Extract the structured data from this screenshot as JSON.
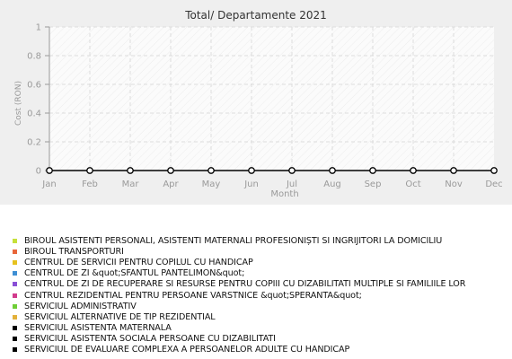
{
  "chart_data": {
    "type": "line",
    "title": "Total/ Departamente 2021",
    "xlabel": "Month",
    "ylabel": "Cost (RON)",
    "categories": [
      "Jan",
      "Feb",
      "Mar",
      "Apr",
      "May",
      "Jun",
      "Jul",
      "Aug",
      "Sep",
      "Oct",
      "Nov",
      "Dec"
    ],
    "y_ticks": [
      "0",
      "0.2",
      "0.4",
      "0.6",
      "0.8",
      "1"
    ],
    "ylim": [
      0,
      1
    ],
    "grid": true,
    "values": [
      0,
      0,
      0,
      0,
      0,
      0,
      0,
      0,
      0,
      0,
      0,
      0
    ],
    "colors": {
      "line": "#000000",
      "marker_fill": "#ffffff",
      "marker_stroke": "#000000"
    }
  },
  "legend": [
    {
      "label": "BIROUL ASISTENTI PERSONALI, ASISTENTI MATERNALI PROFESIONIȘTI SI INGRIJITORI LA DOMICILIU",
      "color": "#c6e03a"
    },
    {
      "label": "BIROUL TRANSPORTURI",
      "color": "#e8663a"
    },
    {
      "label": "CENTRUL DE SERVICII PENTRU COPILUL CU HANDICAP",
      "color": "#e6c21f"
    },
    {
      "label": "CENTRUL DE ZI &quot;SFANTUL PANTELIMON&quot;",
      "color": "#3f8fd4"
    },
    {
      "label": "CENTRUL DE ZI DE RECUPERARE SI RESURSE PENTRU COPIII CU DIZABILITATI MULTIPLE SI FAMILIILE LOR",
      "color": "#8a4fd6"
    },
    {
      "label": "CENTRUL REZIDENTIAL PENTRU PERSOANE VARSTNICE &quot;SPERANTA&quot;",
      "color": "#d23b8c"
    },
    {
      "label": "SERVICIUL ADMINISTRATIV",
      "color": "#6fce36"
    },
    {
      "label": "SERVICIUL ALTERNATIVE DE TIP REZIDENTIAL",
      "color": "#e3b13a"
    },
    {
      "label": "SERVICIUL ASISTENTA MATERNALA",
      "color": "#000000"
    },
    {
      "label": "SERVICIUL ASISTENTA SOCIALA PERSOANE CU DIZABILITATI",
      "color": "#000000"
    },
    {
      "label": "SERVICIUL DE EVALUARE COMPLEXA A PERSOANELOR ADULTE CU HANDICAP",
      "color": "#000000"
    }
  ]
}
